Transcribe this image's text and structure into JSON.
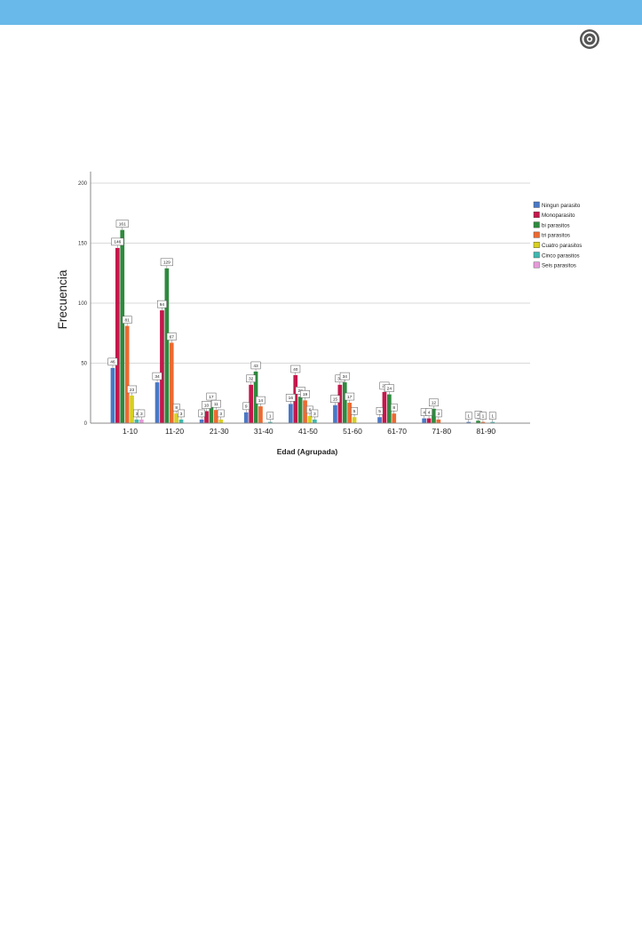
{
  "colors": {
    "header": "#69b9ea",
    "grid": "#d9d9d9",
    "axis": "#8a8a8a"
  },
  "logo": {
    "icon": "journal-seal-icon"
  },
  "chart_data": {
    "type": "bar",
    "xlabel": "Edad (Agrupada)",
    "ylabel": "Frecuencia",
    "ylim": [
      0,
      200
    ],
    "yticks": [
      0,
      50,
      100,
      150,
      200
    ],
    "grid": true,
    "legend_position": "top-right",
    "categories": [
      "1-10",
      "11-20",
      "21-30",
      "31-40",
      "41-50",
      "51-60",
      "61-70",
      "71-80",
      "81-90"
    ],
    "series": [
      {
        "name": "Ningun parasito",
        "color": "#4a78c6",
        "values": [
          46,
          34,
          3,
          9,
          16,
          15,
          5,
          4,
          1
        ]
      },
      {
        "name": "Monoparasito",
        "color": "#c4174b",
        "values": [
          146,
          94,
          10,
          32,
          40,
          32,
          26,
          4,
          null
        ]
      },
      {
        "name": "bi parasitos",
        "color": "#2e8a3e",
        "values": [
          161,
          129,
          17,
          43,
          22,
          34,
          24,
          12,
          2
        ]
      },
      {
        "name": "tri parasitos",
        "color": "#ec6a32",
        "values": [
          81,
          67,
          11,
          14,
          19,
          17,
          8,
          3,
          1
        ]
      },
      {
        "name": "Cuatro parasitos",
        "color": "#d7cf22",
        "values": [
          23,
          8,
          3,
          null,
          6,
          5,
          null,
          null,
          null
        ]
      },
      {
        "name": "Cinco parasitos",
        "color": "#3fb7b0",
        "values": [
          3,
          3,
          null,
          1,
          3,
          null,
          null,
          null,
          1
        ]
      },
      {
        "name": "Seis parasitos",
        "color": "#e59ad8",
        "values": [
          3,
          null,
          null,
          null,
          null,
          null,
          null,
          null,
          null
        ]
      }
    ]
  }
}
